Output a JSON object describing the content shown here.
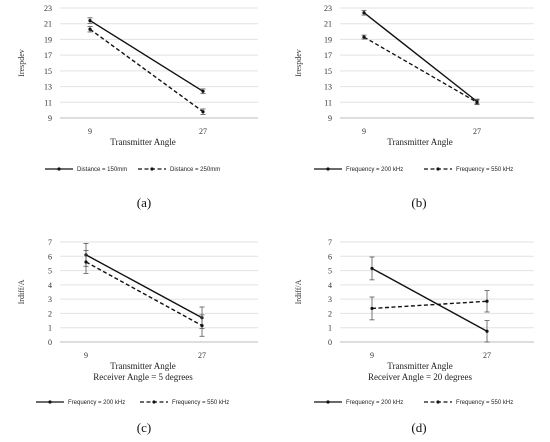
{
  "chart_data": [
    {
      "type": "line",
      "caption": "(a)",
      "ylabel": "Irespdev",
      "xlabel": "Transmitter Angle",
      "subxlabel": "",
      "categories": [
        "9",
        "27"
      ],
      "ylim": [
        9,
        23
      ],
      "yticks": [
        "9",
        "11",
        "13",
        "15",
        "17",
        "19",
        "21",
        "23"
      ],
      "grid": true,
      "legend": "bottom",
      "series": [
        {
          "name": "Distance = 150mm",
          "style": "solid",
          "values": [
            21.4,
            12.4
          ],
          "errors": [
            0.35,
            0.3
          ]
        },
        {
          "name": "Distance = 250mm",
          "style": "dashed",
          "values": [
            20.3,
            9.8
          ],
          "errors": [
            0.35,
            0.35
          ]
        }
      ]
    },
    {
      "type": "line",
      "caption": "(b)",
      "ylabel": "Irespdev",
      "xlabel": "Transmitter Angle",
      "subxlabel": "",
      "categories": [
        "9",
        "27"
      ],
      "ylim": [
        9,
        23
      ],
      "yticks": [
        "9",
        "11",
        "13",
        "15",
        "17",
        "19",
        "21",
        "23"
      ],
      "grid": true,
      "legend": "bottom",
      "series": [
        {
          "name": "Frequency = 200 kHz",
          "style": "solid",
          "values": [
            22.4,
            11.1
          ],
          "errors": [
            0.3,
            0.3
          ]
        },
        {
          "name": "Frequency = 550 kHz",
          "style": "dashed",
          "values": [
            19.3,
            11.0
          ],
          "errors": [
            0.25,
            0.3
          ]
        }
      ]
    },
    {
      "type": "line",
      "caption": "(c)",
      "ylabel": "Irdiff/A",
      "xlabel": "Transmitter Angle",
      "subxlabel": "Receiver Angle = 5 degrees",
      "categories": [
        "9",
        "27"
      ],
      "ylim": [
        0,
        7
      ],
      "yticks": [
        "0",
        "1",
        "2",
        "3",
        "4",
        "5",
        "6",
        "7"
      ],
      "grid": true,
      "legend": "bottom",
      "series": [
        {
          "name": "Frequency = 200 kHz",
          "style": "solid",
          "values": [
            6.1,
            1.7
          ],
          "errors": [
            0.8,
            0.75
          ]
        },
        {
          "name": "Frequency = 550 kHz",
          "style": "dashed",
          "values": [
            5.6,
            1.15
          ],
          "errors": [
            0.8,
            0.75
          ]
        }
      ]
    },
    {
      "type": "line",
      "caption": "(d)",
      "ylabel": "Irdiff/A",
      "xlabel": "Transmitter Angle",
      "subxlabel": "Receiver Angle = 20 degrees",
      "categories": [
        "9",
        "27"
      ],
      "ylim": [
        0,
        7
      ],
      "yticks": [
        "0",
        "1",
        "2",
        "3",
        "4",
        "5",
        "6",
        "7"
      ],
      "grid": true,
      "legend": "bottom",
      "series": [
        {
          "name": "Frequency = 200 kHz",
          "style": "solid",
          "values": [
            5.15,
            0.75
          ],
          "errors": [
            0.8,
            0.75
          ]
        },
        {
          "name": "Frequency = 550 kHz",
          "style": "dashed",
          "values": [
            2.35,
            2.85
          ],
          "errors": [
            0.8,
            0.75
          ]
        }
      ]
    }
  ]
}
